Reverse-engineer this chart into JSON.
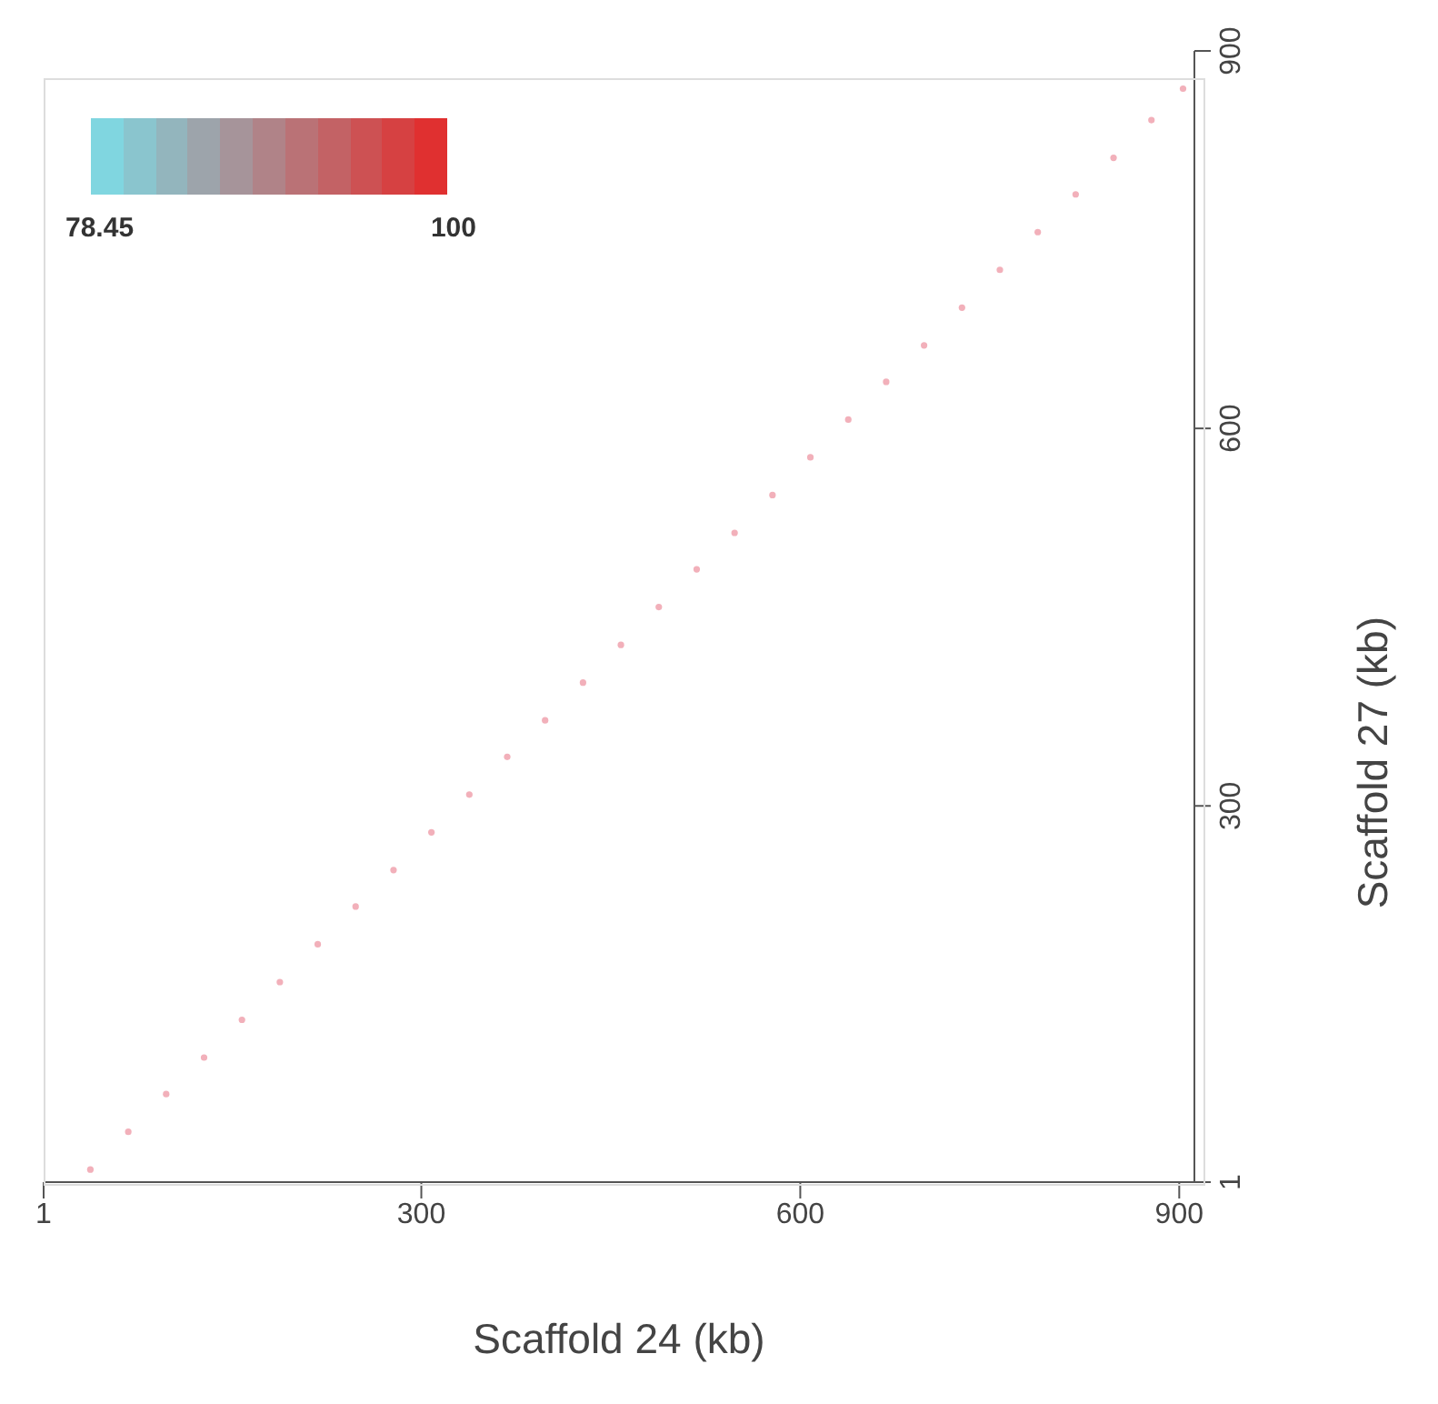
{
  "chart_data": {
    "type": "scatter",
    "xlabel": "Scaffold 24 (kb)",
    "ylabel": "Scaffold 27 (kb)",
    "x": [
      38,
      68,
      98,
      128,
      158,
      188,
      218,
      248,
      278,
      308,
      338,
      368,
      398,
      428,
      458,
      488,
      518,
      548,
      578,
      608,
      638,
      668,
      698,
      728,
      758,
      788,
      818,
      848,
      878,
      903
    ],
    "values": [
      11,
      41,
      71,
      100,
      130,
      160,
      190,
      220,
      249,
      279,
      309,
      339,
      368,
      398,
      428,
      458,
      488,
      517,
      547,
      577,
      607,
      637,
      666,
      696,
      726,
      756,
      786,
      815,
      845,
      870
    ],
    "color": "#f2b0ba",
    "xlim": [
      1,
      912
    ],
    "ylim": [
      1,
      900
    ],
    "xticks": [
      1,
      300,
      600,
      900
    ],
    "yticks": [
      1,
      300,
      600,
      900
    ],
    "annotations": [
      "78.45",
      "100"
    ],
    "marker": "circle",
    "grid": false,
    "legend": false
  }
}
